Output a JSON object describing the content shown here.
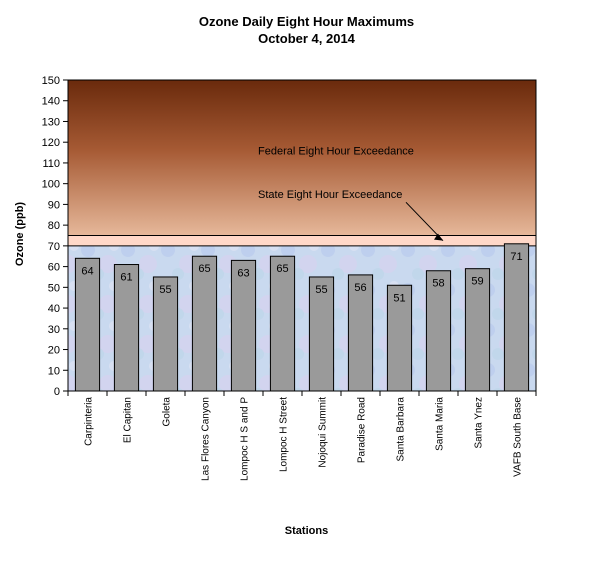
{
  "chart_data": {
    "type": "bar",
    "title": "Ozone Daily Eight Hour Maximums",
    "subtitle": "October 4, 2014",
    "xlabel": "Stations",
    "ylabel": "Ozone (ppb)",
    "ylim": [
      0,
      150
    ],
    "yticks": [
      0,
      10,
      20,
      30,
      40,
      50,
      60,
      70,
      80,
      90,
      100,
      110,
      120,
      130,
      140,
      150
    ],
    "categories": [
      "Carpinteria",
      "El Capitan",
      "Goleta",
      "Las Flores Canyon",
      "Lompoc H S and P",
      "Lompoc H Street",
      "Nojoqui Summit",
      "Paradise Road",
      "Santa Barbara",
      "Santa Maria",
      "Santa Ynez",
      "VAFB South Base"
    ],
    "values": [
      64,
      61,
      55,
      65,
      63,
      65,
      55,
      56,
      51,
      58,
      59,
      71
    ],
    "thresholds": {
      "state": 70,
      "federal": 75
    },
    "annotations": {
      "federal_label": "Federal Eight Hour Exceedance",
      "state_label": "State Eight Hour Exceedance"
    },
    "colors": {
      "bar": "#9a9a9a",
      "exceed_top": "#6a2a0c",
      "exceed_bottom": "#e6b89a",
      "band": "#ffd8c8",
      "normal_bg": "#c8d8ee"
    },
    "grid": false,
    "legend": "none"
  }
}
